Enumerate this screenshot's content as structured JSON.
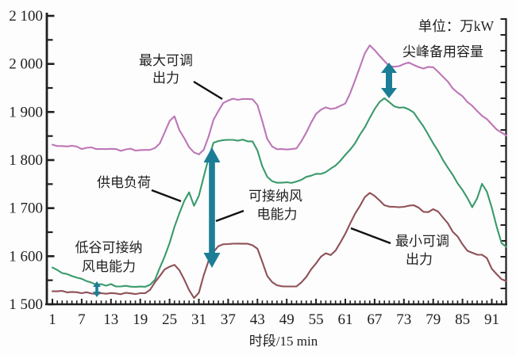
{
  "unit_label": "单位：万kW",
  "axes": {
    "x_label": "时段/15 min",
    "y_tick_labels": [
      "2 100",
      "2 000",
      "1 900",
      "1 800",
      "1 700",
      "1 600",
      "1 500"
    ],
    "x_tick_labels": [
      "1",
      "7",
      "13",
      "19",
      "25",
      "31",
      "37",
      "43",
      "49",
      "55",
      "61",
      "67",
      "73",
      "79",
      "85",
      "91"
    ]
  },
  "annotations": {
    "max_output": {
      "line1": "最大可调",
      "line2": "出力"
    },
    "supply_load": {
      "label": "供电负荷"
    },
    "valley_wind": {
      "line1": "低谷可接纳",
      "line2": "风电能力"
    },
    "wind_capacity": {
      "line1": "可接纳风",
      "line2": "电能力"
    },
    "peak_reserve": {
      "label": "尖峰备用容量"
    },
    "min_output": {
      "line1": "最小可调",
      "line2": "出力"
    }
  },
  "colors": {
    "max_output": "#bd76b6",
    "supply_load": "#3a9a6c",
    "min_output": "#8f5157",
    "arrow": "#1c7e96",
    "axis": "#1f1f1f",
    "pointer": "#111111"
  },
  "chart_data": {
    "type": "line",
    "title": "",
    "xlabel": "时段/15 min",
    "ylabel": "",
    "unit": "万kW",
    "xlim": [
      1,
      94
    ],
    "ylim": [
      1500,
      2100
    ],
    "x_tick_values": [
      1,
      7,
      13,
      19,
      25,
      31,
      37,
      43,
      49,
      55,
      61,
      67,
      73,
      79,
      85,
      91
    ],
    "y_tick_values": [
      1500,
      1600,
      1700,
      1800,
      1900,
      2000,
      2100
    ],
    "x_start": 1,
    "x_step": 1,
    "grid": false,
    "legend": "annotated-inline",
    "series": [
      {
        "name": "最大可调出力",
        "color": "#bd76b6",
        "values": [
          1832,
          1830,
          1828,
          1829,
          1830,
          1827,
          1824,
          1825,
          1826,
          1824,
          1822,
          1823,
          1824,
          1822,
          1820,
          1822,
          1823,
          1821,
          1820,
          1821,
          1822,
          1824,
          1835,
          1858,
          1880,
          1892,
          1862,
          1845,
          1828,
          1815,
          1812,
          1822,
          1848,
          1885,
          1902,
          1918,
          1925,
          1927,
          1925,
          1928,
          1926,
          1927,
          1915,
          1880,
          1845,
          1828,
          1822,
          1824,
          1821,
          1823,
          1825,
          1838,
          1858,
          1878,
          1895,
          1906,
          1909,
          1906,
          1909,
          1912,
          1918,
          1940,
          1965,
          1995,
          2022,
          2038,
          2030,
          2016,
          2006,
          1996,
          1993,
          1996,
          2000,
          2002,
          1999,
          1993,
          1990,
          1995,
          1992,
          1984,
          1974,
          1962,
          1950,
          1940,
          1932,
          1922,
          1912,
          1902,
          1893,
          1884,
          1875,
          1864,
          1856,
          1852
        ]
      },
      {
        "name": "供电负荷",
        "color": "#3a9a6c",
        "values": [
          1576,
          1571,
          1566,
          1562,
          1559,
          1556,
          1552,
          1549,
          1545,
          1540,
          1543,
          1538,
          1542,
          1538,
          1536,
          1539,
          1537,
          1535,
          1538,
          1536,
          1540,
          1552,
          1575,
          1600,
          1628,
          1660,
          1690,
          1715,
          1732,
          1706,
          1725,
          1765,
          1805,
          1835,
          1840,
          1842,
          1841,
          1843,
          1840,
          1842,
          1840,
          1838,
          1820,
          1788,
          1764,
          1757,
          1753,
          1752,
          1755,
          1752,
          1755,
          1760,
          1764,
          1768,
          1772,
          1770,
          1776,
          1782,
          1788,
          1800,
          1810,
          1822,
          1836,
          1852,
          1869,
          1888,
          1905,
          1922,
          1928,
          1920,
          1913,
          1908,
          1910,
          1906,
          1898,
          1885,
          1870,
          1852,
          1836,
          1818,
          1800,
          1785,
          1768,
          1752,
          1738,
          1720,
          1703,
          1720,
          1750,
          1735,
          1700,
          1662,
          1628,
          1618
        ]
      },
      {
        "name": "最小可调出力",
        "color": "#8f5157",
        "values": [
          1528,
          1527,
          1527,
          1526,
          1525,
          1525,
          1524,
          1524,
          1523,
          1522,
          1522,
          1523,
          1523,
          1522,
          1522,
          1523,
          1523,
          1522,
          1522,
          1524,
          1530,
          1545,
          1560,
          1572,
          1578,
          1583,
          1570,
          1552,
          1530,
          1512,
          1525,
          1560,
          1590,
          1610,
          1620,
          1625,
          1626,
          1625,
          1627,
          1626,
          1625,
          1624,
          1615,
          1588,
          1560,
          1545,
          1540,
          1538,
          1536,
          1538,
          1537,
          1545,
          1558,
          1572,
          1585,
          1600,
          1605,
          1603,
          1612,
          1628,
          1648,
          1668,
          1688,
          1706,
          1722,
          1732,
          1726,
          1715,
          1707,
          1703,
          1702,
          1703,
          1702,
          1705,
          1707,
          1700,
          1693,
          1692,
          1697,
          1694,
          1680,
          1668,
          1652,
          1640,
          1625,
          1612,
          1606,
          1604,
          1603,
          1595,
          1575,
          1562,
          1552,
          1549
        ]
      }
    ],
    "arrows": [
      {
        "label": "尖峰备用容量",
        "between": [
          "最大可调出力",
          "供电负荷"
        ],
        "at_x": 70
      },
      {
        "label": "可接纳风电能力",
        "between": [
          "供电负荷",
          "最小可调出力"
        ],
        "at_x": 34
      },
      {
        "label": "低谷可接纳风电能力",
        "between": [
          "供电负荷",
          "最小可调出力"
        ],
        "at_x": 10
      }
    ]
  }
}
